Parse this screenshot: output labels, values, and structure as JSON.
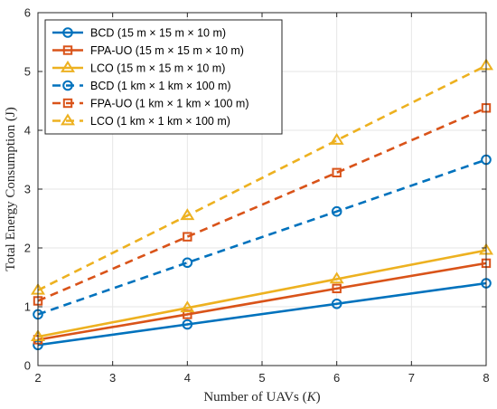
{
  "chart_data": {
    "type": "line",
    "title": "",
    "xlabel": "Number of UAVs (",
    "xlabel_var": "K",
    "xlabel_end": ")",
    "ylabel": "Total Energy Consumption (J)",
    "xlim": [
      2,
      8
    ],
    "ylim": [
      0,
      6
    ],
    "xticks": [
      "2",
      "3",
      "4",
      "5",
      "6",
      "7",
      "8"
    ],
    "yticks": [
      "0",
      "1",
      "2",
      "3",
      "4",
      "5",
      "6"
    ],
    "grid": true,
    "legend_position": "top-left",
    "x": [
      2,
      4,
      6,
      8
    ],
    "series": [
      {
        "name": "BCD (15 m × 15 m × 10 m)",
        "values": [
          0.35,
          0.7,
          1.05,
          1.4
        ],
        "color": "#0072BD",
        "marker": "circle",
        "dash": "solid"
      },
      {
        "name": "FPA-UO (15 m × 15 m × 10 m)",
        "values": [
          0.44,
          0.87,
          1.31,
          1.74
        ],
        "color": "#D95319",
        "marker": "square",
        "dash": "solid"
      },
      {
        "name": "LCO (15 m × 15 m × 10 m)",
        "values": [
          0.49,
          0.98,
          1.47,
          1.96
        ],
        "color": "#EDB120",
        "marker": "triangle",
        "dash": "solid"
      },
      {
        "name": "BCD (1 km × 1 km × 100 m)",
        "values": [
          0.87,
          1.75,
          2.62,
          3.5
        ],
        "color": "#0072BD",
        "marker": "circle",
        "dash": "dashed"
      },
      {
        "name": "FPA-UO (1 km × 1 km × 100 m)",
        "values": [
          1.1,
          2.19,
          3.28,
          4.38
        ],
        "color": "#D95319",
        "marker": "square",
        "dash": "dashed"
      },
      {
        "name": "LCO (1 km × 1 km × 100 m)",
        "values": [
          1.28,
          2.55,
          3.83,
          5.1
        ],
        "color": "#EDB120",
        "marker": "triangle",
        "dash": "dashed"
      }
    ]
  }
}
